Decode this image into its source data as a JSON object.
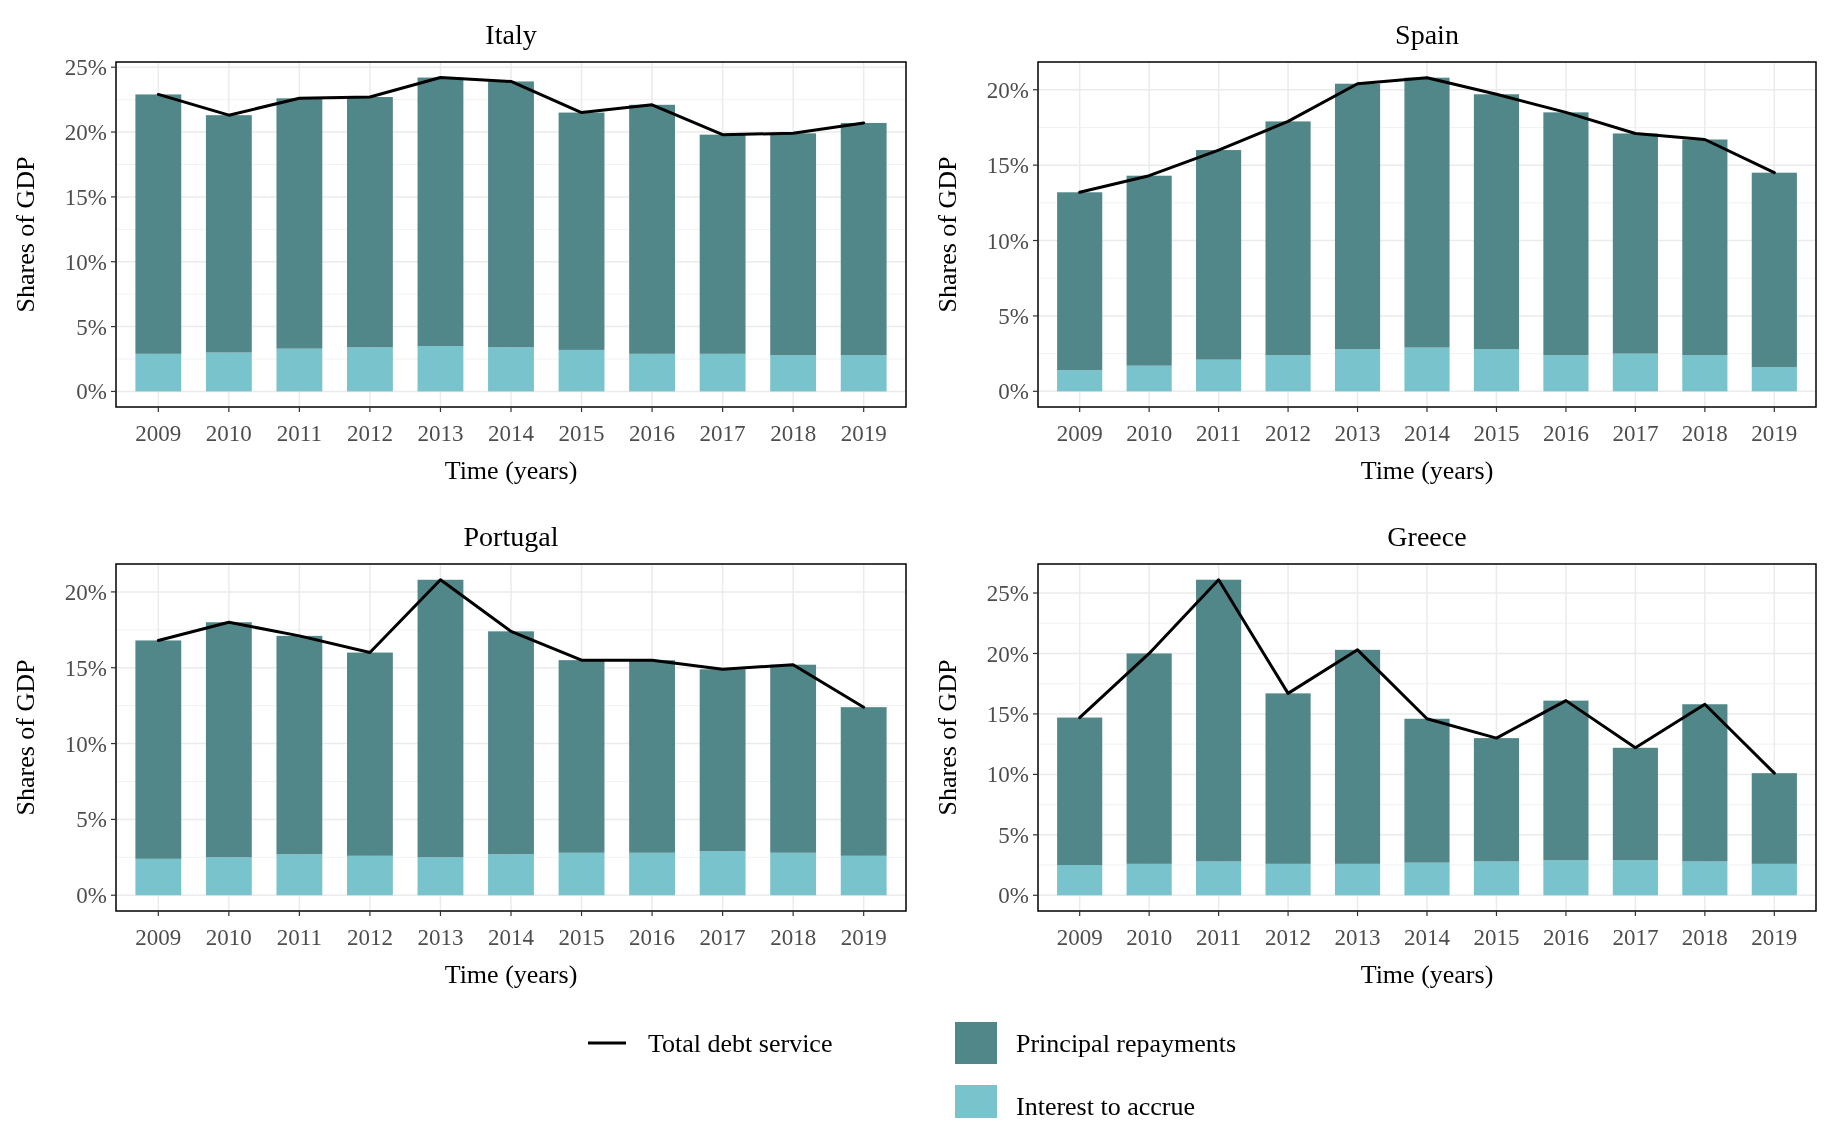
{
  "chart_data": [
    {
      "type": "bar",
      "title": "Italy",
      "xlabel": "Time (years)",
      "ylabel": "Shares of GDP",
      "stacked": true,
      "grid": true,
      "legend": "bottom",
      "categories": [
        "2009",
        "2010",
        "2011",
        "2012",
        "2013",
        "2014",
        "2015",
        "2016",
        "2017",
        "2018",
        "2019"
      ],
      "ylim": [
        -1.2,
        25.4
      ],
      "yticks": [
        {
          "value": 0,
          "label": "0%"
        },
        {
          "value": 5,
          "label": "5%"
        },
        {
          "value": 10,
          "label": "10%"
        },
        {
          "value": 15,
          "label": "15%"
        },
        {
          "value": 20,
          "label": "20%"
        },
        {
          "value": 25,
          "label": "25%"
        }
      ],
      "series": [
        {
          "name": "Interest to accrue",
          "color": "#79c3cc",
          "values": [
            2.9,
            3.0,
            3.3,
            3.4,
            3.5,
            3.4,
            3.2,
            2.9,
            2.9,
            2.8,
            2.8
          ]
        },
        {
          "name": "Principal repayments",
          "color": "#528789",
          "values": [
            20.0,
            18.3,
            19.3,
            19.3,
            20.7,
            20.5,
            18.3,
            19.2,
            16.9,
            17.1,
            17.9
          ]
        },
        {
          "name": "Total debt service",
          "type": "line",
          "color": "#000000",
          "values": [
            22.9,
            21.3,
            22.6,
            22.7,
            24.2,
            23.9,
            21.5,
            22.1,
            19.8,
            19.9,
            20.7
          ]
        }
      ]
    },
    {
      "type": "bar",
      "title": "Spain",
      "xlabel": "Time (years)",
      "ylabel": "Shares of GDP",
      "stacked": true,
      "grid": true,
      "categories": [
        "2009",
        "2010",
        "2011",
        "2012",
        "2013",
        "2014",
        "2015",
        "2016",
        "2017",
        "2018",
        "2019"
      ],
      "ylim": [
        -1.04,
        21.84
      ],
      "yticks": [
        {
          "value": 0,
          "label": "0%"
        },
        {
          "value": 5,
          "label": "5%"
        },
        {
          "value": 10,
          "label": "10%"
        },
        {
          "value": 15,
          "label": "15%"
        },
        {
          "value": 20,
          "label": "20%"
        }
      ],
      "series": [
        {
          "color": "#79c3cc",
          "values": [
            1.4,
            1.7,
            2.1,
            2.4,
            2.8,
            2.9,
            2.8,
            2.4,
            2.5,
            2.4,
            1.6
          ]
        },
        {
          "color": "#528789",
          "values": [
            11.8,
            12.6,
            13.9,
            15.5,
            17.6,
            17.9,
            16.9,
            16.1,
            14.6,
            14.3,
            12.9
          ]
        },
        {
          "type": "line",
          "color": "#000000",
          "values": [
            13.2,
            14.3,
            16.0,
            17.9,
            20.4,
            20.8,
            19.7,
            18.5,
            17.1,
            16.7,
            14.5
          ]
        }
      ]
    },
    {
      "type": "bar",
      "title": "Portugal",
      "xlabel": "Time (years)",
      "ylabel": "Shares of GDP",
      "stacked": true,
      "grid": true,
      "categories": [
        "2009",
        "2010",
        "2011",
        "2012",
        "2013",
        "2014",
        "2015",
        "2016",
        "2017",
        "2018",
        "2019"
      ],
      "ylim": [
        -1.04,
        21.84
      ],
      "yticks": [
        {
          "value": 0,
          "label": "0%"
        },
        {
          "value": 5,
          "label": "5%"
        },
        {
          "value": 10,
          "label": "10%"
        },
        {
          "value": 15,
          "label": "15%"
        },
        {
          "value": 20,
          "label": "20%"
        }
      ],
      "series": [
        {
          "color": "#79c3cc",
          "values": [
            2.4,
            2.5,
            2.7,
            2.6,
            2.5,
            2.7,
            2.8,
            2.8,
            2.9,
            2.8,
            2.6
          ]
        },
        {
          "color": "#528789",
          "values": [
            14.4,
            15.5,
            14.4,
            13.4,
            18.3,
            14.7,
            12.7,
            12.7,
            12.0,
            12.4,
            9.8
          ]
        },
        {
          "type": "line",
          "color": "#000000",
          "values": [
            16.8,
            18.0,
            17.1,
            16.0,
            20.8,
            17.4,
            15.5,
            15.5,
            14.9,
            15.2,
            12.4
          ]
        }
      ]
    },
    {
      "type": "bar",
      "title": "Greece",
      "xlabel": "Time (years)",
      "ylabel": "Shares of GDP",
      "stacked": true,
      "grid": true,
      "categories": [
        "2009",
        "2010",
        "2011",
        "2012",
        "2013",
        "2014",
        "2015",
        "2016",
        "2017",
        "2018",
        "2019"
      ],
      "ylim": [
        -1.3,
        27.4
      ],
      "yticks": [
        {
          "value": 0,
          "label": "0%"
        },
        {
          "value": 5,
          "label": "5%"
        },
        {
          "value": 10,
          "label": "10%"
        },
        {
          "value": 15,
          "label": "15%"
        },
        {
          "value": 20,
          "label": "20%"
        },
        {
          "value": 25,
          "label": "25%"
        }
      ],
      "series": [
        {
          "color": "#79c3cc",
          "values": [
            2.5,
            2.6,
            2.8,
            2.6,
            2.6,
            2.7,
            2.8,
            2.9,
            2.9,
            2.8,
            2.6
          ]
        },
        {
          "color": "#528789",
          "values": [
            12.2,
            17.4,
            23.3,
            14.1,
            17.7,
            11.9,
            10.2,
            13.2,
            9.3,
            13.0,
            7.5
          ]
        },
        {
          "type": "line",
          "color": "#000000",
          "values": [
            14.7,
            20.0,
            26.1,
            16.7,
            20.3,
            14.6,
            13.0,
            16.1,
            12.2,
            15.8,
            10.1
          ]
        }
      ]
    }
  ]
}
